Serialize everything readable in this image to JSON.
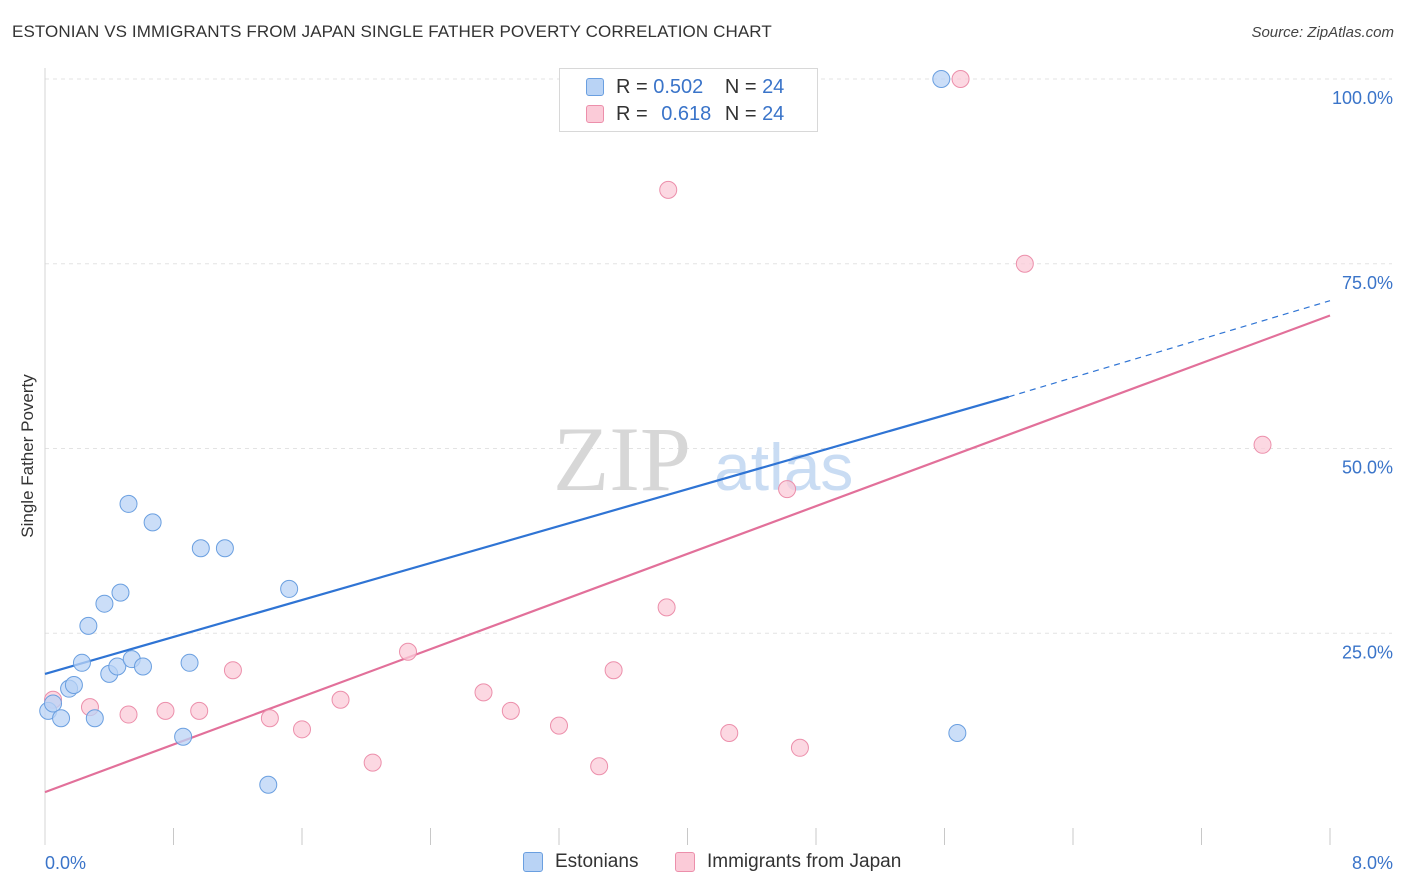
{
  "header": {
    "title": "ESTONIAN VS IMMIGRANTS FROM JAPAN SINGLE FATHER POVERTY CORRELATION CHART",
    "source": "Source: ZipAtlas.com"
  },
  "legend": {
    "series": [
      {
        "r_label": "R =",
        "r_value": "0.502",
        "n_label": "N =",
        "n_value": "24"
      },
      {
        "r_label": "R =",
        "r_value": "0.618",
        "n_label": "N =",
        "n_value": "24"
      }
    ]
  },
  "watermark": {
    "zip": "ZIP",
    "atlas": "atlas"
  },
  "colors": {
    "blue_fill": "#b9d3f5",
    "blue_stroke": "#6a9fe0",
    "blue_line": "#2f74d4",
    "pink_fill": "#fbcbd8",
    "pink_stroke": "#ec8fab",
    "pink_line": "#e2709a",
    "tick_text": "#3a74c9",
    "grid": "#e3e3e3"
  },
  "chart_data": {
    "type": "scatter",
    "title": "ESTONIAN VS IMMIGRANTS FROM JAPAN SINGLE FATHER POVERTY CORRELATION CHART",
    "xlabel": "",
    "ylabel": "Single Father Poverty",
    "xlim": [
      0,
      8
    ],
    "ylim": [
      0,
      102
    ],
    "x_tick_labels": [
      "0.0%",
      "8.0%"
    ],
    "y_ticks": [
      25,
      50,
      75,
      100
    ],
    "y_tick_labels": [
      "25.0%",
      "50.0%",
      "75.0%",
      "100.0%"
    ],
    "grid": true,
    "legend_position": "top-center",
    "series": [
      {
        "name": "Estonians",
        "R": 0.502,
        "N": 24,
        "points": [
          {
            "x": 0.02,
            "y": 14.5
          },
          {
            "x": 0.05,
            "y": 15.5
          },
          {
            "x": 0.1,
            "y": 13.5
          },
          {
            "x": 0.15,
            "y": 17.5
          },
          {
            "x": 0.18,
            "y": 18.0
          },
          {
            "x": 0.23,
            "y": 21.0
          },
          {
            "x": 0.27,
            "y": 26.0
          },
          {
            "x": 0.31,
            "y": 13.5
          },
          {
            "x": 0.37,
            "y": 29.0
          },
          {
            "x": 0.4,
            "y": 19.5
          },
          {
            "x": 0.45,
            "y": 20.5
          },
          {
            "x": 0.47,
            "y": 30.5
          },
          {
            "x": 0.52,
            "y": 42.5
          },
          {
            "x": 0.54,
            "y": 21.5
          },
          {
            "x": 0.61,
            "y": 20.5
          },
          {
            "x": 0.67,
            "y": 40.0
          },
          {
            "x": 0.86,
            "y": 11.0
          },
          {
            "x": 0.9,
            "y": 21.0
          },
          {
            "x": 0.97,
            "y": 36.5
          },
          {
            "x": 1.12,
            "y": 36.5
          },
          {
            "x": 1.39,
            "y": 4.5
          },
          {
            "x": 1.52,
            "y": 31.0
          },
          {
            "x": 5.58,
            "y": 100.0
          },
          {
            "x": 5.68,
            "y": 11.5
          }
        ],
        "trend": {
          "x0": 0.0,
          "y0": 19.5,
          "x1": 6.0,
          "y1": 57.0,
          "dash_to_x": 8.0,
          "dash_to_y": 70.0
        }
      },
      {
        "name": "Immigrants from Japan",
        "R": 0.618,
        "N": 24,
        "points": [
          {
            "x": 0.05,
            "y": 16.0
          },
          {
            "x": 0.28,
            "y": 15.0
          },
          {
            "x": 0.52,
            "y": 14.0
          },
          {
            "x": 0.75,
            "y": 14.5
          },
          {
            "x": 0.96,
            "y": 14.5
          },
          {
            "x": 1.17,
            "y": 20.0
          },
          {
            "x": 1.4,
            "y": 13.5
          },
          {
            "x": 1.6,
            "y": 12.0
          },
          {
            "x": 1.84,
            "y": 16.0
          },
          {
            "x": 2.04,
            "y": 7.5
          },
          {
            "x": 2.26,
            "y": 22.5
          },
          {
            "x": 2.73,
            "y": 17.0
          },
          {
            "x": 2.9,
            "y": 14.5
          },
          {
            "x": 3.2,
            "y": 12.5
          },
          {
            "x": 3.45,
            "y": 7.0
          },
          {
            "x": 3.54,
            "y": 20.0
          },
          {
            "x": 3.87,
            "y": 28.5
          },
          {
            "x": 3.88,
            "y": 85.0
          },
          {
            "x": 4.26,
            "y": 11.5
          },
          {
            "x": 4.62,
            "y": 44.5
          },
          {
            "x": 4.7,
            "y": 9.5
          },
          {
            "x": 5.7,
            "y": 100.0
          },
          {
            "x": 6.1,
            "y": 75.0
          },
          {
            "x": 7.58,
            "y": 50.5
          }
        ],
        "trend": {
          "x0": 0.0,
          "y0": 3.5,
          "x1": 8.0,
          "y1": 68.0
        }
      }
    ]
  }
}
